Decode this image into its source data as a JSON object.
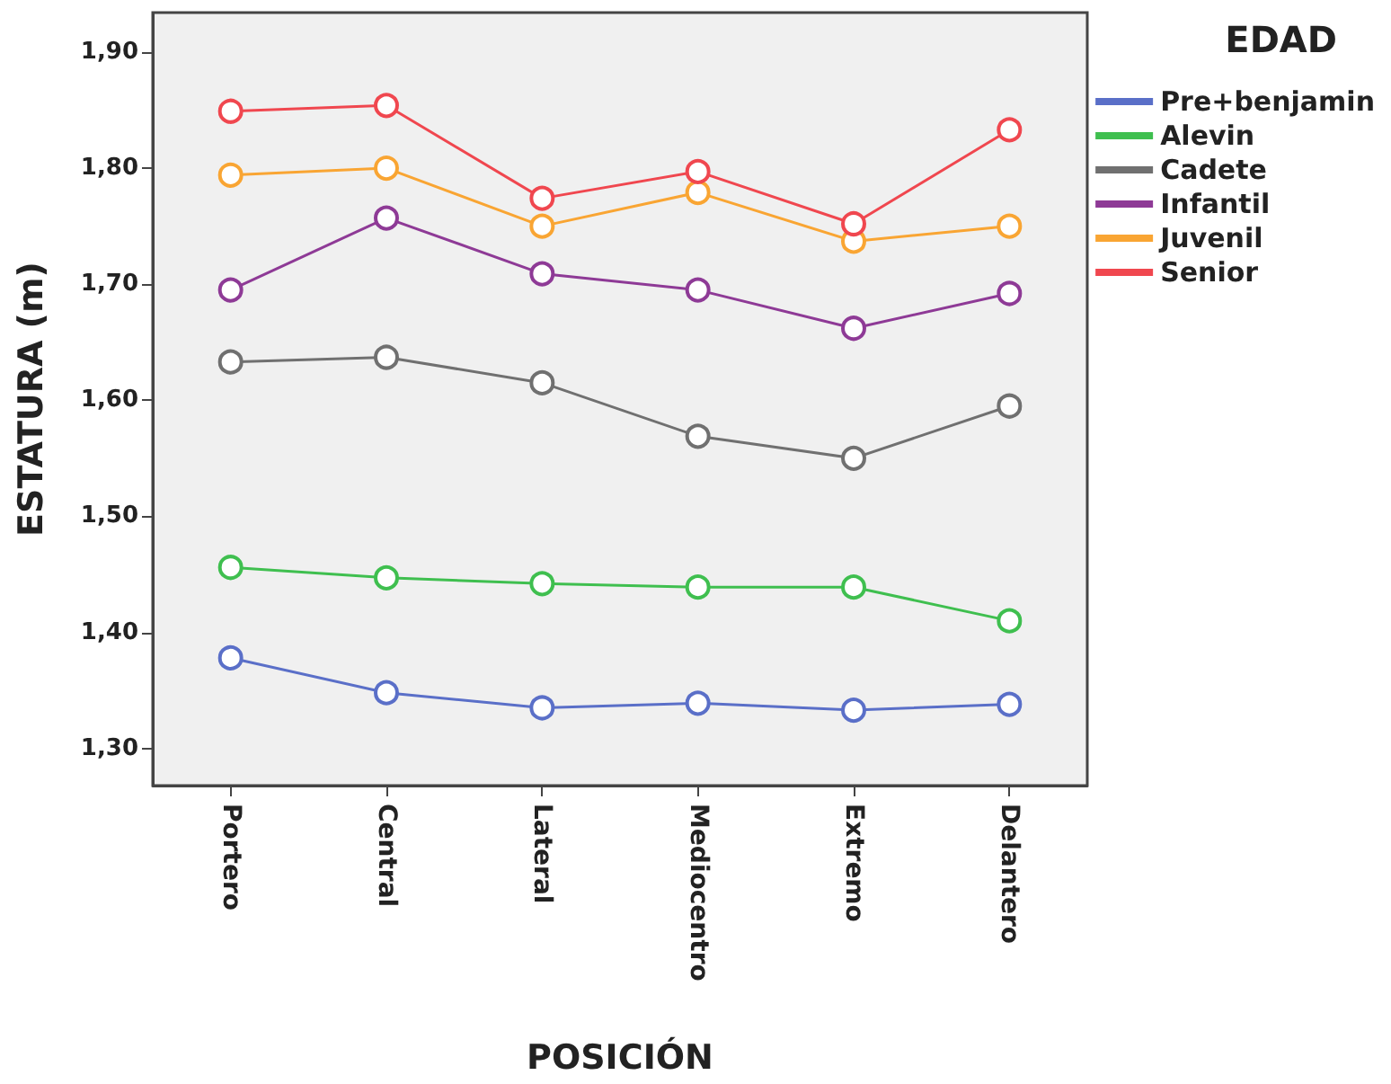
{
  "chart_data": {
    "type": "line",
    "xlabel": "POSICIÓN",
    "ylabel": "ESTATURA (m)",
    "legend_title": "EDAD",
    "legend": "right",
    "grid": false,
    "marker": "circle",
    "line_style": "solid",
    "categories": [
      "Portero",
      "Central",
      "Lateral",
      "Mediocentro",
      "Extremo",
      "Delantero"
    ],
    "ylim": [
      1.268,
      1.934
    ],
    "yticks": [
      {
        "value": 1.3,
        "label": "1,30"
      },
      {
        "value": 1.4,
        "label": "1,40"
      },
      {
        "value": 1.5,
        "label": "1,50"
      },
      {
        "value": 1.6,
        "label": "1,60"
      },
      {
        "value": 1.7,
        "label": "1,70"
      },
      {
        "value": 1.8,
        "label": "1,80"
      },
      {
        "value": 1.9,
        "label": "1,90"
      }
    ],
    "series": [
      {
        "name": "Pre+benjamin",
        "color": "#5a6fc8",
        "values": [
          1.378,
          1.348,
          1.335,
          1.339,
          1.333,
          1.338
        ]
      },
      {
        "name": "Alevin",
        "color": "#3fbf4f",
        "values": [
          1.456,
          1.447,
          1.442,
          1.439,
          1.439,
          1.41
        ]
      },
      {
        "name": "Cadete",
        "color": "#707070",
        "values": [
          1.633,
          1.637,
          1.615,
          1.569,
          1.55,
          1.595
        ]
      },
      {
        "name": "Infantil",
        "color": "#8e3a96",
        "values": [
          1.695,
          1.757,
          1.709,
          1.695,
          1.662,
          1.692
        ]
      },
      {
        "name": "Juvenil",
        "color": "#f9a533",
        "values": [
          1.794,
          1.8,
          1.75,
          1.779,
          1.737,
          1.75
        ]
      },
      {
        "name": "Senior",
        "color": "#f0474f",
        "values": [
          1.849,
          1.854,
          1.774,
          1.797,
          1.752,
          1.833
        ]
      }
    ]
  }
}
